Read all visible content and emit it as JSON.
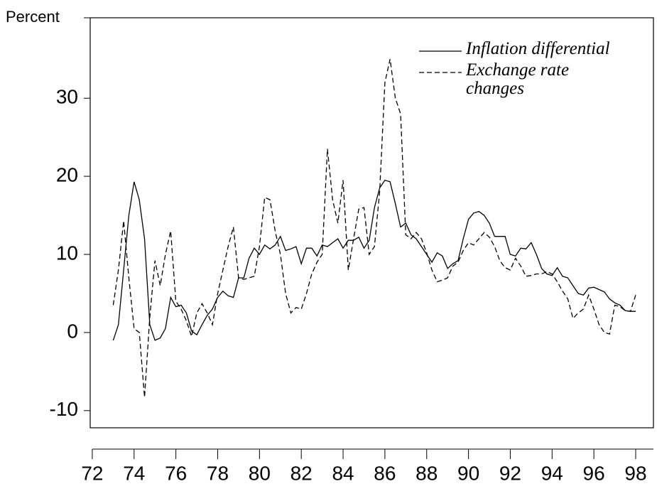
{
  "chart_data": {
    "type": "line",
    "y_label": "Percent",
    "x": [
      73,
      73.25,
      73.5,
      73.75,
      74,
      74.25,
      74.5,
      74.75,
      75,
      75.25,
      75.5,
      75.75,
      76,
      76.25,
      76.5,
      76.75,
      77,
      77.25,
      77.5,
      77.75,
      78,
      78.25,
      78.5,
      78.75,
      79,
      79.25,
      79.5,
      79.75,
      80,
      80.25,
      80.5,
      80.75,
      81,
      81.25,
      81.5,
      81.75,
      82,
      82.25,
      82.5,
      82.75,
      83,
      83.25,
      83.5,
      83.75,
      84,
      84.25,
      84.5,
      84.75,
      85,
      85.25,
      85.5,
      85.75,
      86,
      86.25,
      86.5,
      86.75,
      87,
      87.25,
      87.5,
      87.75,
      88,
      88.25,
      88.5,
      88.75,
      89,
      89.25,
      89.5,
      89.75,
      90,
      90.25,
      90.5,
      90.75,
      91,
      91.25,
      91.5,
      91.75,
      92,
      92.25,
      92.5,
      92.75,
      93,
      93.25,
      93.5,
      93.75,
      94,
      94.25,
      94.5,
      94.75,
      95,
      95.25,
      95.5,
      95.75,
      96,
      96.25,
      96.5,
      96.75,
      97,
      97.25,
      97.5,
      97.75,
      98
    ],
    "series": [
      {
        "name": "Inflation differential",
        "color": "#000000",
        "dash": "none",
        "values": [
          -1,
          1,
          8,
          15,
          19.3,
          17,
          12,
          1,
          -1,
          -0.7,
          0.5,
          4.5,
          3.3,
          3.5,
          2.5,
          0.2,
          -0.3,
          1,
          2.2,
          3,
          4.5,
          5.3,
          4.7,
          4.5,
          7,
          7,
          9.5,
          10.8,
          10,
          11.2,
          10.7,
          11.2,
          12.3,
          10.5,
          10.7,
          11,
          8.8,
          10.8,
          10.8,
          9.8,
          11.2,
          11,
          11.5,
          12,
          10.8,
          11.8,
          11.8,
          12.2,
          10.8,
          11.8,
          16,
          18.5,
          19.5,
          19.3,
          16.5,
          13.5,
          14,
          12.5,
          12,
          11,
          10,
          9,
          10.2,
          9.8,
          8.2,
          8.8,
          9.2,
          12,
          14.5,
          15.3,
          15.5,
          15,
          14,
          12.3,
          12.3,
          12.3,
          10,
          9.8,
          10.8,
          10.7,
          11.5,
          10,
          8.2,
          7.5,
          7.3,
          8.3,
          7.2,
          7,
          6,
          5,
          4.8,
          5.7,
          5.8,
          5.5,
          5.2,
          4.3,
          3.8,
          3.5,
          2.8,
          2.7,
          2.7
        ]
      },
      {
        "name": "Exchange rate changes",
        "color": "#000000",
        "dash": "7 4",
        "values": [
          3.5,
          8,
          14.3,
          7,
          0.5,
          0,
          -8.3,
          2,
          9.2,
          6,
          10,
          13,
          4,
          3,
          1.5,
          -0.5,
          2.5,
          3.7,
          2.5,
          1,
          5,
          8,
          11,
          13.5,
          7,
          6.8,
          7,
          7.2,
          11,
          17.3,
          17,
          13,
          10,
          5,
          2.5,
          3.2,
          3,
          5,
          7.5,
          9,
          10,
          23.5,
          17,
          14,
          19.5,
          8,
          12,
          15.8,
          16,
          10,
          11,
          18,
          32,
          35,
          30,
          28,
          12.5,
          12,
          12.8,
          12,
          10.2,
          8,
          6.5,
          6.7,
          7,
          8.5,
          9,
          10.5,
          11.5,
          11.2,
          12,
          12.8,
          12.2,
          11,
          9.2,
          8.3,
          8,
          9.5,
          8.5,
          7.2,
          7.3,
          7.5,
          7.5,
          7.8,
          7.5,
          6.5,
          5.3,
          4.3,
          1.8,
          2.5,
          3,
          4.8,
          3,
          1,
          0,
          -0.2,
          3.5,
          3.3,
          2.8,
          2.7,
          4.8
        ]
      }
    ],
    "xlim": [
      71.9,
      98.85
    ],
    "xticks": [
      72,
      74,
      76,
      78,
      80,
      82,
      84,
      86,
      88,
      90,
      92,
      94,
      96,
      98
    ],
    "ylim": [
      -12.2,
      40.3
    ],
    "yticks": [
      -10,
      0,
      10,
      20,
      30
    ],
    "legend": "top-right",
    "grid": false
  }
}
